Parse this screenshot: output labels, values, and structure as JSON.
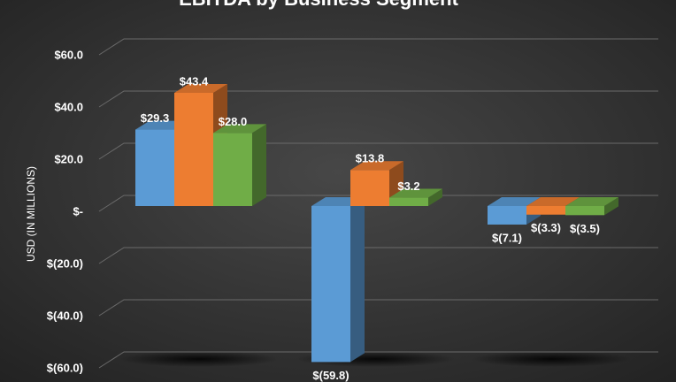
{
  "chart_data": {
    "type": "bar3d",
    "title": "EBITDA by Business Segment",
    "y_label": "USD (IN MILLIONS)",
    "categories": [
      null,
      null,
      null
    ],
    "series": [
      {
        "color": "#5b9bd5",
        "values": [
          29.3,
          -59.8,
          -7.1
        ],
        "value_labels": [
          "$29.3",
          "$(59.8)",
          "$(7.1)"
        ]
      },
      {
        "color": "#ed7d31",
        "values": [
          43.4,
          13.8,
          -3.3
        ],
        "value_labels": [
          "$43.4",
          "$13.8",
          "$(3.3)"
        ]
      },
      {
        "color": "#70ad47",
        "values": [
          28.0,
          3.2,
          -3.5
        ],
        "value_labels": [
          "$28.0",
          "$3.2",
          "$(3.5)"
        ]
      }
    ],
    "ylim": [
      -60,
      60
    ],
    "yticks": [
      {
        "value": 60,
        "label": "$60.0"
      },
      {
        "value": 40,
        "label": "$40.0"
      },
      {
        "value": 20,
        "label": "$20.0"
      },
      {
        "value": 0,
        "label": "$-"
      },
      {
        "value": -20,
        "label": "$(20.0)"
      },
      {
        "value": -40,
        "label": "$(40.0)"
      },
      {
        "value": -60,
        "label": "$(60.0)"
      }
    ],
    "grid": true
  }
}
